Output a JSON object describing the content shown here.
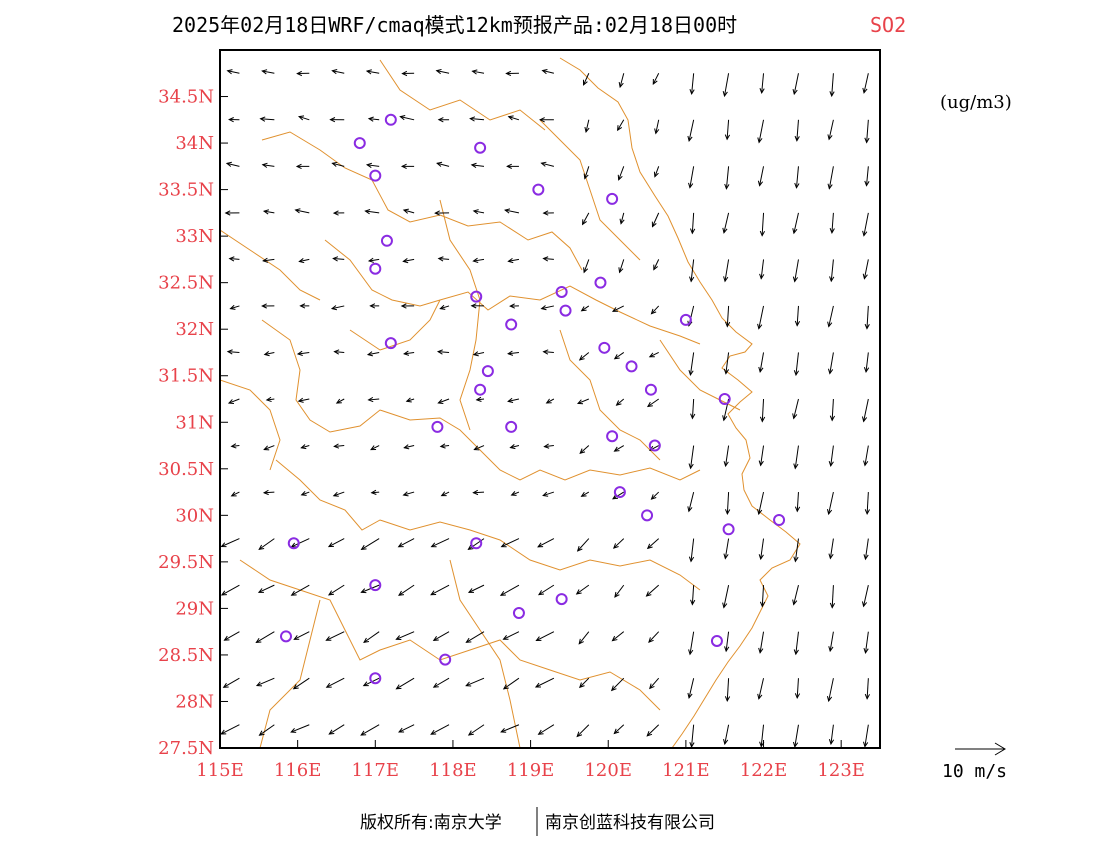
{
  "header": {
    "title": "2025年02月18日WRF/cmaq模式12km预报产品:02月18日00时",
    "variable": "SO2"
  },
  "units": "(ug/m3)",
  "footer": {
    "left": "版权所有:南京大学",
    "right": "南京创蓝科技有限公司"
  },
  "reference_vector": {
    "label": "10 m/s",
    "speed": 10
  },
  "map": {
    "lon_range": [
      115,
      123.5
    ],
    "lat_range": [
      27.5,
      35
    ],
    "x_ticks": [
      "115E",
      "116E",
      "117E",
      "118E",
      "119E",
      "120E",
      "121E",
      "122E",
      "123E"
    ],
    "y_ticks": [
      "27.5N",
      "28N",
      "28.5N",
      "29N",
      "29.5N",
      "30N",
      "30.5N",
      "31N",
      "31.5N",
      "32N",
      "32.5N",
      "33N",
      "33.5N",
      "34N",
      "34.5N"
    ],
    "colors": {
      "boundary": "#e0912f",
      "tick_labels": "#e8424a",
      "stations": "#8a2be2",
      "wind": "#000000"
    },
    "stations": [
      [
        116.8,
        34.0
      ],
      [
        117.2,
        34.25
      ],
      [
        118.35,
        33.95
      ],
      [
        117.0,
        33.65
      ],
      [
        119.1,
        33.5
      ],
      [
        120.05,
        33.4
      ],
      [
        117.15,
        32.95
      ],
      [
        117.0,
        32.65
      ],
      [
        118.3,
        32.35
      ],
      [
        119.4,
        32.4
      ],
      [
        119.9,
        32.5
      ],
      [
        118.75,
        32.05
      ],
      [
        119.45,
        32.2
      ],
      [
        121.0,
        32.1
      ],
      [
        117.2,
        31.85
      ],
      [
        119.95,
        31.8
      ],
      [
        120.3,
        31.6
      ],
      [
        118.45,
        31.55
      ],
      [
        118.35,
        31.35
      ],
      [
        120.55,
        31.35
      ],
      [
        121.5,
        31.25
      ],
      [
        117.8,
        30.95
      ],
      [
        118.75,
        30.95
      ],
      [
        120.05,
        30.85
      ],
      [
        120.6,
        30.75
      ],
      [
        120.15,
        30.25
      ],
      [
        120.5,
        30.0
      ],
      [
        121.55,
        29.85
      ],
      [
        122.2,
        29.95
      ],
      [
        115.95,
        29.7
      ],
      [
        118.3,
        29.7
      ],
      [
        117.0,
        29.25
      ],
      [
        119.4,
        29.1
      ],
      [
        118.85,
        28.95
      ],
      [
        115.85,
        28.7
      ],
      [
        121.4,
        28.65
      ],
      [
        117.9,
        28.45
      ],
      [
        117.0,
        28.25
      ]
    ],
    "wind_field": [
      {
        "lat_min": 33.0,
        "lat_max": 35.0,
        "lon_min": 115.0,
        "lon_max": 119.5,
        "u": -4,
        "v": 0.5
      },
      {
        "lat_min": 31.5,
        "lat_max": 33.0,
        "lon_min": 115.0,
        "lon_max": 119.5,
        "u": -3.5,
        "v": -0.3
      },
      {
        "lat_min": 30.0,
        "lat_max": 31.5,
        "lon_min": 115.0,
        "lon_max": 119.5,
        "u": -3,
        "v": -0.8
      },
      {
        "lat_min": 27.5,
        "lat_max": 30.0,
        "lon_min": 115.0,
        "lon_max": 119.5,
        "u": -5.5,
        "v": -3
      },
      {
        "lat_min": 32.5,
        "lat_max": 35.0,
        "lon_min": 119.5,
        "lon_max": 121.0,
        "u": -1.5,
        "v": -4
      },
      {
        "lat_min": 30.0,
        "lat_max": 32.5,
        "lon_min": 119.5,
        "lon_max": 121.0,
        "u": -3,
        "v": -2
      },
      {
        "lat_min": 27.5,
        "lat_max": 30.0,
        "lon_min": 119.5,
        "lon_max": 121.0,
        "u": -3.5,
        "v": -3.5
      },
      {
        "lat_min": 27.5,
        "lat_max": 35.0,
        "lon_min": 121.0,
        "lon_max": 123.5,
        "u": -1,
        "v": -7
      }
    ]
  }
}
